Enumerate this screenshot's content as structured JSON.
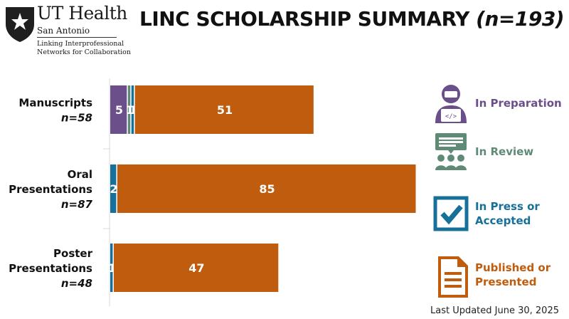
{
  "header": {
    "logo_name": "UT Health",
    "logo_sub": "San Antonio",
    "logo_tagline_1": "Linking Interprofessional",
    "logo_tagline_2": "Networks for Collaboration",
    "title": "LINC SCHOLARSHIP SUMMARY",
    "title_n": "(n=193)"
  },
  "colors": {
    "in_preparation": "#6b4f8a",
    "in_review": "#5e8a76",
    "in_press": "#16709a",
    "published": "#bf5c0d"
  },
  "chart_data": {
    "type": "bar",
    "orientation": "horizontal",
    "stacked": true,
    "categories": [
      [
        "Manuscripts",
        "n=58"
      ],
      [
        "Oral",
        "Presentations",
        "n=87"
      ],
      [
        "Poster",
        "Presentations",
        "n=48"
      ]
    ],
    "series": [
      {
        "name": "In Preparation",
        "values": [
          5,
          0,
          0
        ]
      },
      {
        "name": "In Review",
        "values": [
          1,
          0,
          0
        ]
      },
      {
        "name": "In Press or Accepted",
        "values": [
          1,
          2,
          1
        ]
      },
      {
        "name": "Published or Presented",
        "values": [
          51,
          85,
          47
        ]
      }
    ],
    "xlim": [
      0,
      87
    ],
    "legend_position": "right"
  },
  "legend": [
    {
      "key": "in_preparation",
      "icon": "person-laptop-icon",
      "lines": [
        "In Preparation"
      ]
    },
    {
      "key": "in_review",
      "icon": "group-review-icon",
      "lines": [
        "In Review"
      ]
    },
    {
      "key": "in_press",
      "icon": "checkbox-icon",
      "lines": [
        "In Press or",
        "Accepted"
      ]
    },
    {
      "key": "published",
      "icon": "document-icon",
      "lines": [
        "Published or",
        "Presented"
      ]
    }
  ],
  "footer": {
    "updated": "Last Updated June 30, 2025"
  }
}
